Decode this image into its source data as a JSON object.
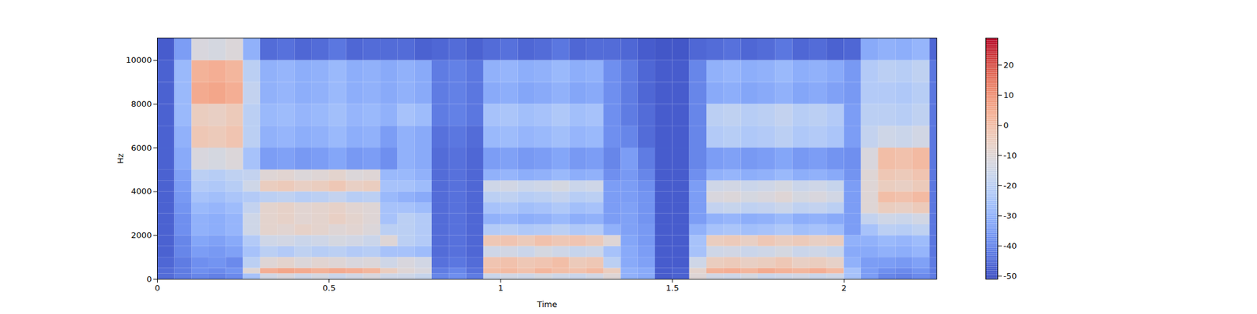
{
  "chart_data": {
    "type": "heatmap",
    "x_label": "Time",
    "y_label": "Hz",
    "xlim": [
      0,
      2.27
    ],
    "ylim": [
      0,
      11025
    ],
    "xticks": [
      0,
      0.5,
      1,
      1.5,
      2
    ],
    "yticks": [
      0,
      2000,
      4000,
      6000,
      8000,
      10000
    ],
    "cells": {
      "time_edges": [
        0,
        0.05,
        0.1,
        0.15,
        0.2,
        0.25,
        0.3,
        0.35,
        0.4,
        0.45,
        0.5,
        0.55,
        0.6,
        0.65,
        0.7,
        0.75,
        0.8,
        0.85,
        0.9,
        0.95,
        1,
        1.05,
        1.1,
        1.15,
        1.2,
        1.25,
        1.3,
        1.35,
        1.4,
        1.45,
        1.5,
        1.55,
        1.6,
        1.65,
        1.7,
        1.75,
        1.8,
        1.85,
        1.9,
        1.95,
        2,
        2.05,
        2.1,
        2.15,
        2.2,
        2.25,
        2.27
      ],
      "freq_edges": [
        0,
        250,
        500,
        1000,
        1500,
        2000,
        2500,
        3000,
        3500,
        4000,
        4500,
        5000,
        6000,
        7000,
        8000,
        9000,
        10000,
        11025
      ],
      "values": [
        [
          -45,
          -42,
          -40,
          -41,
          -39,
          -25,
          -14,
          -12,
          -15,
          -13,
          -16,
          -14,
          -12,
          -15,
          -15,
          -17,
          -40,
          -38,
          -42,
          -16,
          -14,
          -15,
          -13,
          -15,
          -16,
          -14,
          -10,
          -30,
          -32,
          -48,
          -47,
          -10,
          -14,
          -15,
          -13,
          -16,
          -15,
          -14,
          -16,
          -15,
          -25,
          -35,
          -40,
          -41,
          -39,
          -42
        ],
        [
          -45,
          -42,
          -38,
          -39,
          -37,
          -10,
          4,
          6,
          5,
          3,
          5,
          4,
          2,
          -5,
          -10,
          -12,
          -42,
          -40,
          -44,
          0,
          1,
          -1,
          2,
          0,
          -1,
          1,
          -5,
          -30,
          -32,
          -48,
          -47,
          -8,
          3,
          4,
          2,
          5,
          3,
          2,
          4,
          1,
          -25,
          -35,
          -38,
          -39,
          -37,
          -42
        ],
        [
          -46,
          -42,
          -38,
          -37,
          -39,
          -20,
          -10,
          -8,
          -11,
          -9,
          -10,
          -12,
          -11,
          -15,
          -12,
          -14,
          -44,
          -43,
          -45,
          -2,
          -1,
          -3,
          -2,
          0,
          -4,
          -3,
          -20,
          -32,
          -34,
          -48,
          -48,
          -15,
          -5,
          -4,
          -6,
          -5,
          -3,
          -6,
          -5,
          -7,
          -30,
          -35,
          -35,
          -36,
          -34,
          -42
        ],
        [
          -47,
          -40,
          -35,
          -36,
          -34,
          -25,
          -20,
          -22,
          -19,
          -21,
          -20,
          -22,
          -21,
          -25,
          -25,
          -27,
          -45,
          -44,
          -46,
          -15,
          -14,
          -16,
          -13,
          -15,
          -17,
          -16,
          -25,
          -32,
          -35,
          -48,
          -48,
          -25,
          -15,
          -14,
          -16,
          -15,
          -13,
          -16,
          -15,
          -17,
          -32,
          -32,
          -30,
          -31,
          -29,
          -43
        ],
        [
          -47,
          -40,
          -33,
          -34,
          -32,
          -22,
          -15,
          -14,
          -16,
          -15,
          -13,
          -14,
          -16,
          -10,
          -20,
          -22,
          -45,
          -44,
          -46,
          -3,
          -2,
          -4,
          -1,
          -3,
          -2,
          -4,
          -10,
          -33,
          -36,
          -48,
          -48,
          -25,
          -5,
          -4,
          -6,
          -3,
          -5,
          -4,
          -6,
          -5,
          -30,
          -30,
          -28,
          -29,
          -27,
          -43
        ],
        [
          -47,
          -38,
          -30,
          -31,
          -29,
          -15,
          -8,
          -9,
          -7,
          -8,
          -10,
          -9,
          -11,
          -20,
          -20,
          -22,
          -45,
          -44,
          -46,
          -22,
          -21,
          -23,
          -22,
          -20,
          -23,
          -22,
          -30,
          -34,
          -36,
          -48,
          -48,
          -30,
          -25,
          -24,
          -26,
          -25,
          -23,
          -26,
          -25,
          -27,
          -35,
          -25,
          -20,
          -21,
          -19,
          -43
        ],
        [
          -47,
          -38,
          -30,
          -31,
          -29,
          -15,
          -8,
          -7,
          -9,
          -8,
          -6,
          -8,
          -10,
          -25,
          -20,
          -22,
          -45,
          -44,
          -46,
          -30,
          -29,
          -31,
          -30,
          -28,
          -31,
          -30,
          -35,
          -34,
          -37,
          -48,
          -48,
          -35,
          -30,
          -29,
          -31,
          -30,
          -28,
          -31,
          -30,
          -32,
          -35,
          -18,
          -15,
          -16,
          -14,
          -43
        ],
        [
          -47,
          -37,
          -28,
          -29,
          -27,
          -18,
          -8,
          -7,
          -9,
          -8,
          -7,
          -9,
          -10,
          -25,
          -25,
          -27,
          -45,
          -44,
          -46,
          -25,
          -24,
          -26,
          -25,
          -23,
          -26,
          -25,
          -35,
          -34,
          -37,
          -48,
          -48,
          -35,
          -18,
          -17,
          -19,
          -18,
          -16,
          -19,
          -18,
          -20,
          -35,
          -10,
          -5,
          -6,
          -4,
          -43
        ],
        [
          -47,
          -36,
          -25,
          -26,
          -24,
          -22,
          -20,
          -19,
          -21,
          -20,
          -18,
          -21,
          -20,
          -28,
          -30,
          -32,
          -45,
          -44,
          -46,
          -20,
          -19,
          -21,
          -20,
          -18,
          -21,
          -20,
          -35,
          -35,
          -37,
          -48,
          -48,
          -35,
          -12,
          -11,
          -13,
          -12,
          -10,
          -13,
          -12,
          -14,
          -35,
          -10,
          0,
          -1,
          1,
          -43
        ],
        [
          -47,
          -35,
          -22,
          -23,
          -21,
          -15,
          -5,
          -4,
          -6,
          -5,
          -3,
          -6,
          -5,
          -25,
          -25,
          -27,
          -45,
          -44,
          -46,
          -15,
          -14,
          -16,
          -15,
          -13,
          -16,
          -15,
          -35,
          -35,
          -38,
          -48,
          -48,
          -35,
          -15,
          -14,
          -16,
          -15,
          -13,
          -16,
          -15,
          -17,
          -35,
          -10,
          -5,
          -6,
          -4,
          -43
        ],
        [
          -47,
          -34,
          -20,
          -21,
          -19,
          -18,
          -10,
          -9,
          -11,
          -10,
          -8,
          -11,
          -10,
          -28,
          -28,
          -30,
          -45,
          -44,
          -46,
          -30,
          -29,
          -31,
          -30,
          -28,
          -31,
          -30,
          -38,
          -36,
          -40,
          -48,
          -48,
          -38,
          -30,
          -29,
          -31,
          -30,
          -28,
          -31,
          -30,
          -32,
          -37,
          -10,
          -3,
          -4,
          -2,
          -43
        ],
        [
          -47,
          -32,
          -12,
          -13,
          -11,
          -25,
          -35,
          -34,
          -36,
          -35,
          -33,
          -36,
          -35,
          -38,
          -30,
          -32,
          -45,
          -44,
          -46,
          -35,
          -34,
          -36,
          -35,
          -33,
          -36,
          -35,
          -40,
          -35,
          -42,
          -48,
          -48,
          -40,
          -35,
          -34,
          -36,
          -35,
          -33,
          -36,
          -35,
          -37,
          -38,
          -12,
          0,
          -1,
          1,
          -43
        ],
        [
          -47,
          -30,
          -3,
          -4,
          -2,
          -20,
          -30,
          -29,
          -31,
          -30,
          -28,
          -31,
          -30,
          -35,
          -30,
          -32,
          -44,
          -43,
          -45,
          -28,
          -27,
          -29,
          -28,
          -26,
          -29,
          -28,
          -38,
          -40,
          -45,
          -48,
          -48,
          -40,
          -22,
          -21,
          -23,
          -22,
          -20,
          -23,
          -22,
          -24,
          -35,
          -18,
          -15,
          -16,
          -14,
          -43
        ],
        [
          -47,
          -28,
          -5,
          -6,
          -4,
          -20,
          -28,
          -27,
          -29,
          -28,
          -26,
          -29,
          -28,
          -30,
          -25,
          -27,
          -42,
          -41,
          -43,
          -25,
          -24,
          -26,
          -25,
          -23,
          -26,
          -25,
          -38,
          -42,
          -45,
          -48,
          -48,
          -40,
          -20,
          -19,
          -21,
          -20,
          -18,
          -21,
          -20,
          -22,
          -35,
          -20,
          -20,
          -21,
          -19,
          -43
        ],
        [
          -47,
          -28,
          5,
          6,
          4,
          -18,
          -30,
          -29,
          -31,
          -30,
          -28,
          -31,
          -30,
          -32,
          -30,
          -32,
          -42,
          -41,
          -43,
          -32,
          -31,
          -33,
          -32,
          -30,
          -33,
          -32,
          -38,
          -42,
          -46,
          -48,
          -48,
          -40,
          -32,
          -31,
          -33,
          -32,
          -30,
          -33,
          -32,
          -34,
          -36,
          -22,
          -22,
          -23,
          -21,
          -43
        ],
        [
          -47,
          -28,
          3,
          4,
          2,
          -20,
          -30,
          -29,
          -31,
          -30,
          -28,
          -31,
          -30,
          -32,
          -30,
          -32,
          -42,
          -41,
          -43,
          -30,
          -29,
          -31,
          -30,
          -28,
          -31,
          -30,
          -38,
          -42,
          -46,
          -48,
          -48,
          -40,
          -30,
          -29,
          -31,
          -30,
          -28,
          -31,
          -30,
          -32,
          -36,
          -22,
          -20,
          -21,
          -19,
          -43
        ],
        [
          -48,
          -35,
          -12,
          -13,
          -11,
          -30,
          -45,
          -44,
          -46,
          -45,
          -43,
          -46,
          -45,
          -45,
          -45,
          -47,
          -46,
          -45,
          -47,
          -45,
          -44,
          -46,
          -45,
          -43,
          -46,
          -45,
          -45,
          -46,
          -48,
          -49,
          -49,
          -46,
          -45,
          -44,
          -46,
          -45,
          -43,
          -46,
          -45,
          -47,
          -46,
          -32,
          -30,
          -31,
          -29,
          -46
        ]
      ]
    },
    "colorbar": {
      "range": [
        -51,
        29
      ],
      "ticks": [
        -50,
        -40,
        -30,
        -20,
        -10,
        0,
        10,
        20
      ]
    }
  }
}
